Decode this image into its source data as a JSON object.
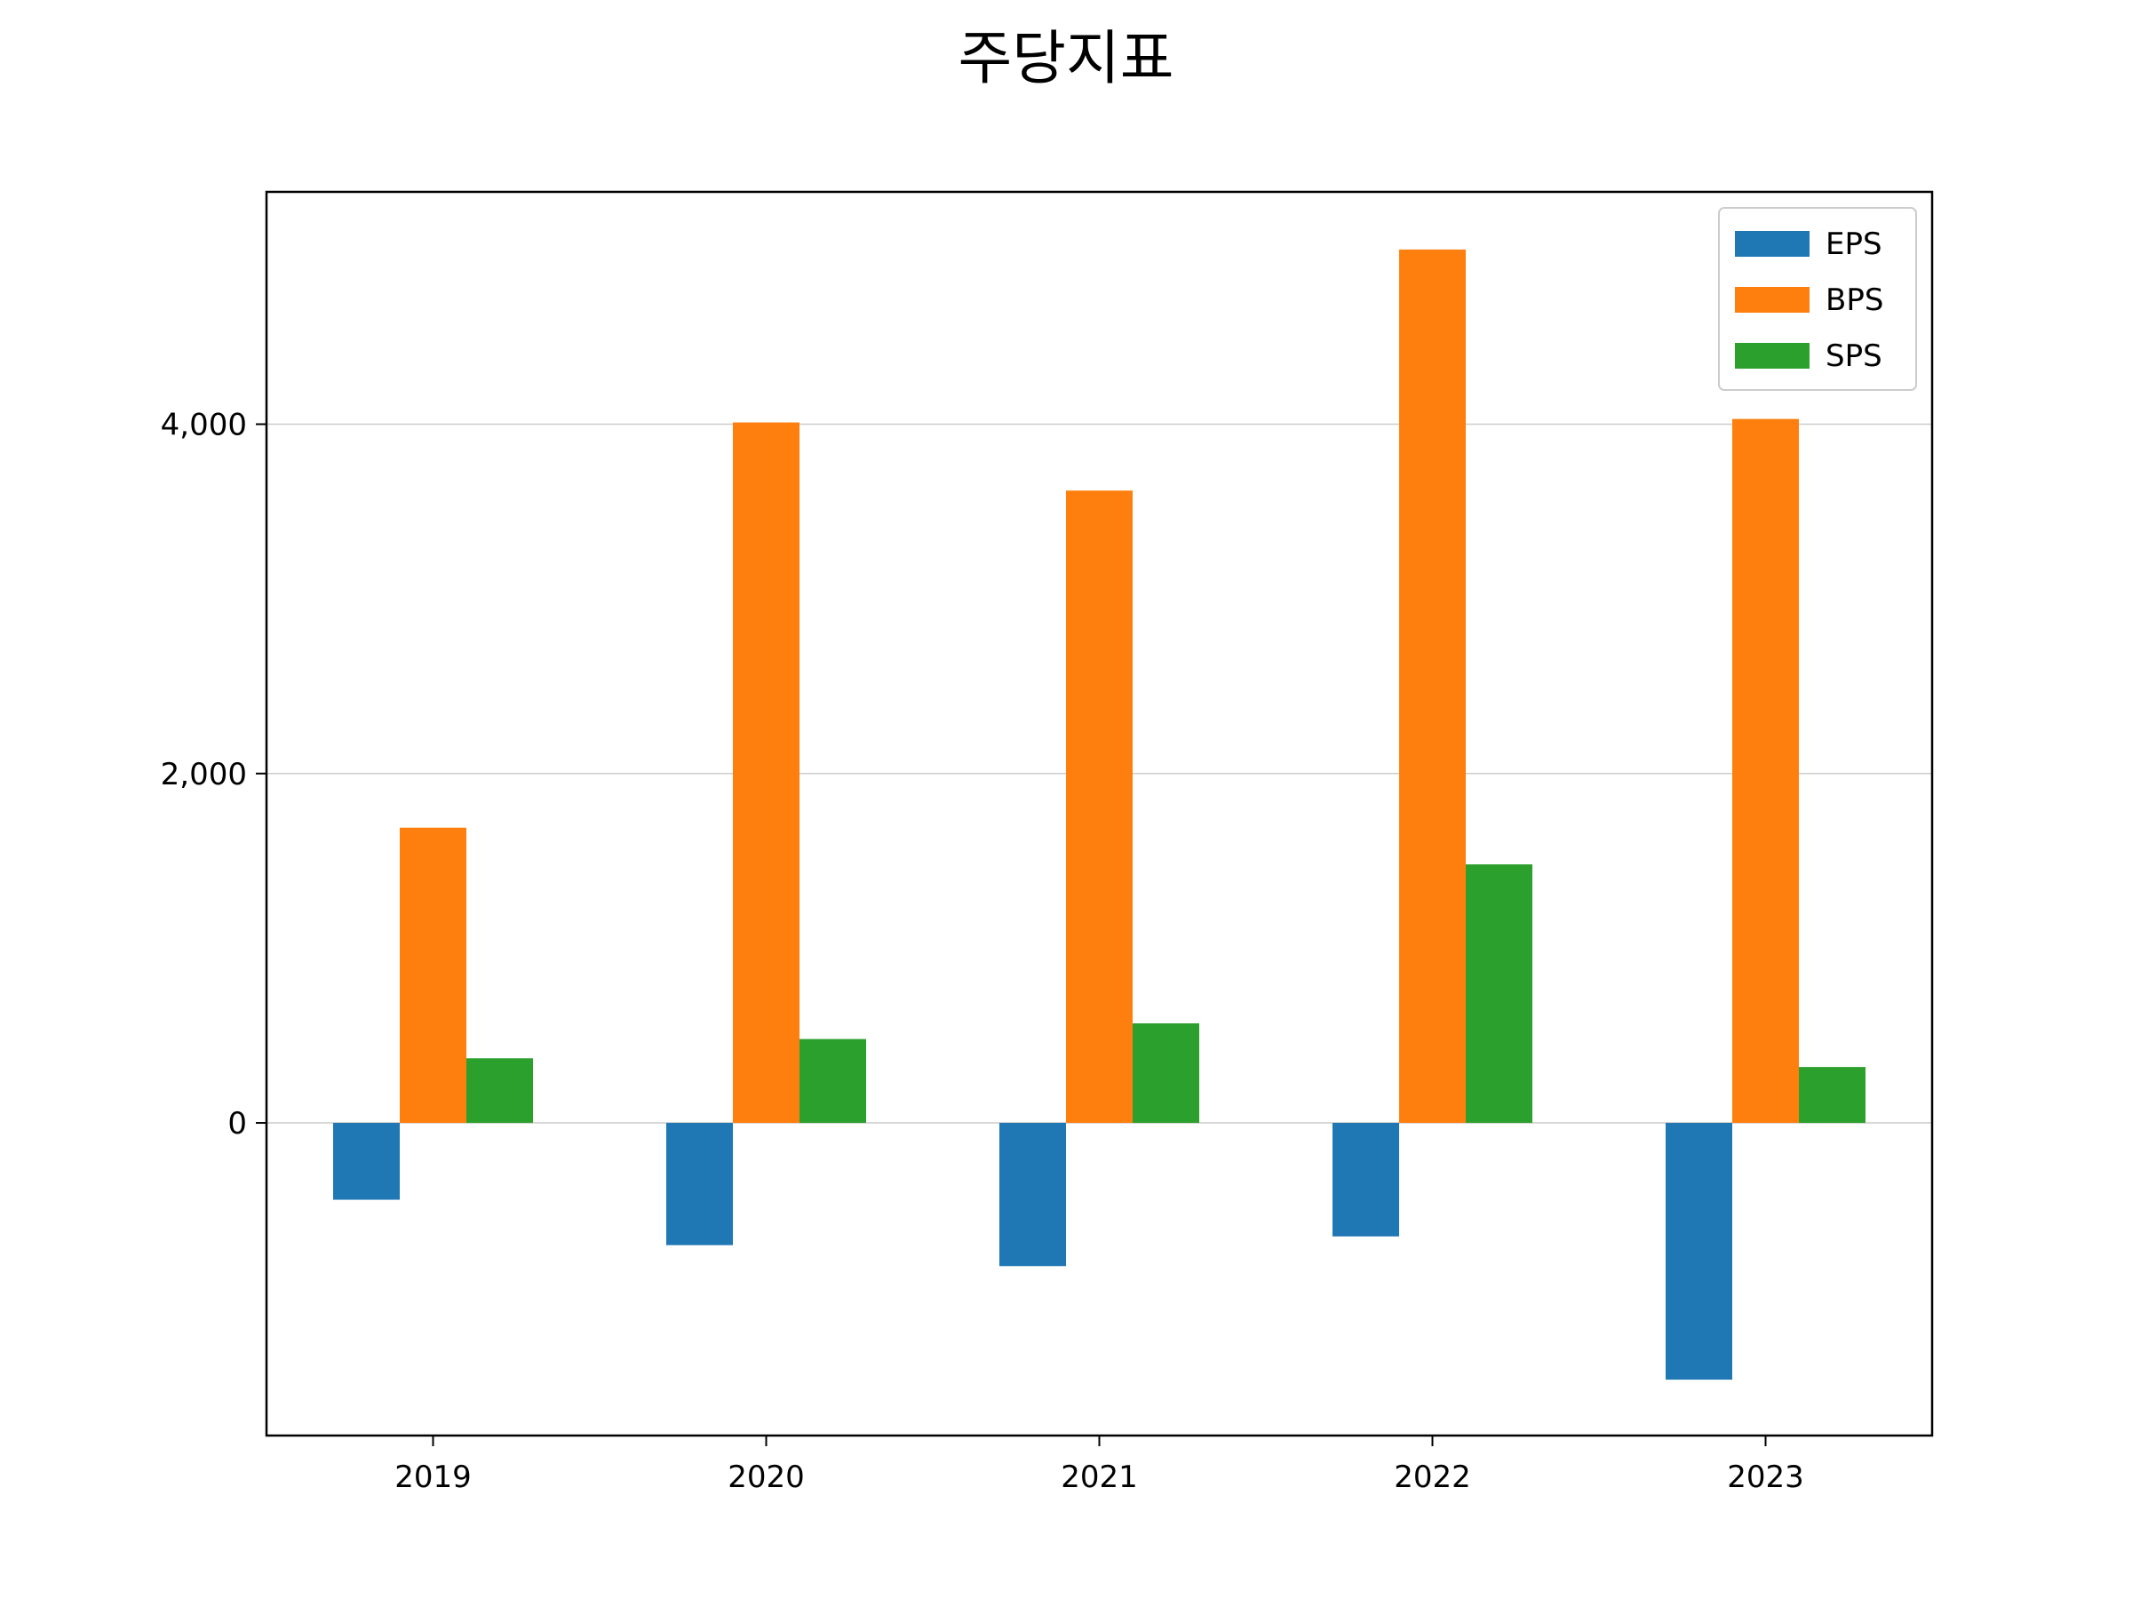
{
  "chart_data": {
    "type": "bar",
    "title": "주당지표",
    "xlabel": "",
    "ylabel": "",
    "categories": [
      "2019",
      "2020",
      "2021",
      "2022",
      "2023"
    ],
    "series": [
      {
        "name": "EPS",
        "color": "#1f77b4",
        "values": [
          -440,
          -700,
          -820,
          -650,
          -1470
        ]
      },
      {
        "name": "BPS",
        "color": "#ff7f0e",
        "values": [
          1690,
          4010,
          3620,
          5000,
          4030
        ]
      },
      {
        "name": "SPS",
        "color": "#2ca02c",
        "values": [
          370,
          480,
          570,
          1480,
          320
        ]
      }
    ],
    "ylim": [
      -1790,
      5330
    ],
    "yticks": [
      0,
      2000,
      4000
    ],
    "ytick_labels": [
      "0",
      "2,000",
      "4,000"
    ],
    "grid": {
      "axis": "y",
      "on": true
    },
    "legend": {
      "placement": "top-right"
    }
  }
}
